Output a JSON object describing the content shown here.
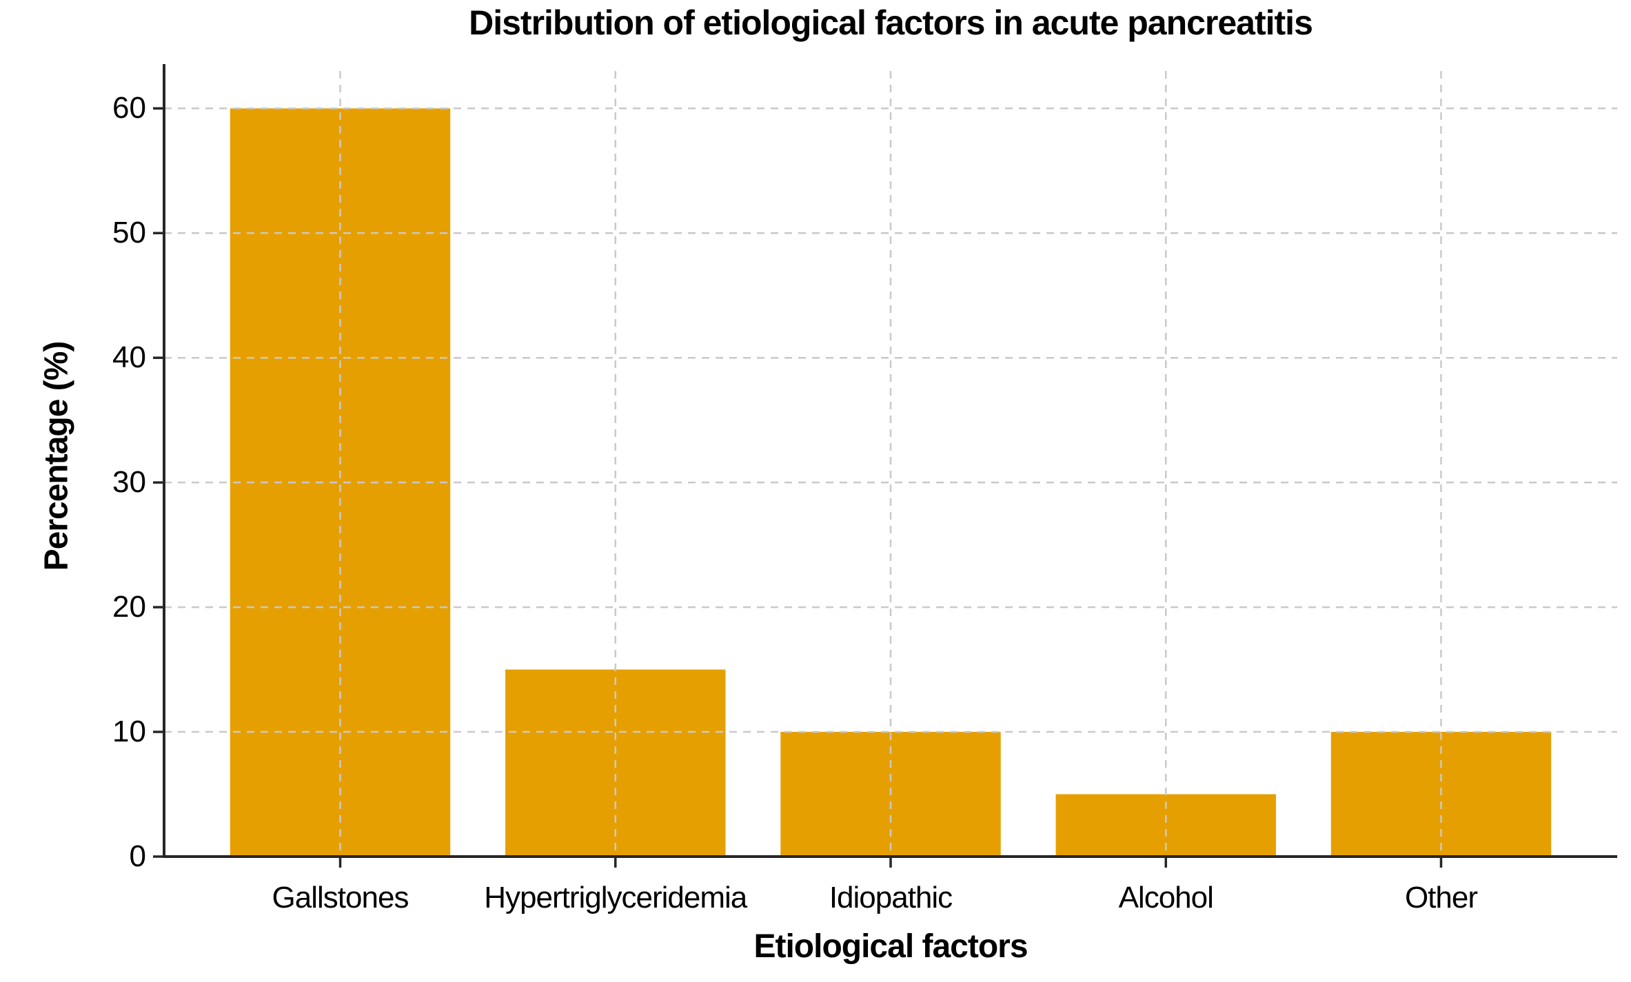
{
  "chart_data": {
    "type": "bar",
    "title": "Distribution of etiological factors in acute pancreatitis",
    "xlabel": "Etiological factors",
    "ylabel": "Percentage (%)",
    "categories": [
      "Gallstones",
      "Hypertriglyceridemia",
      "Idiopathic",
      "Alcohol",
      "Other"
    ],
    "values": [
      60,
      15,
      10,
      5,
      10
    ],
    "yticks": [
      0,
      10,
      20,
      30,
      40,
      50,
      60
    ],
    "ylim": [
      0,
      63
    ],
    "bar_color": "#E69F00",
    "grid": {
      "style": "dashed",
      "color": "#C9C9C9",
      "horizontal": true,
      "vertical": true,
      "drawn_over_bars": true
    },
    "spine_color": "#262626",
    "text_color": "#000000",
    "legend": "none"
  }
}
